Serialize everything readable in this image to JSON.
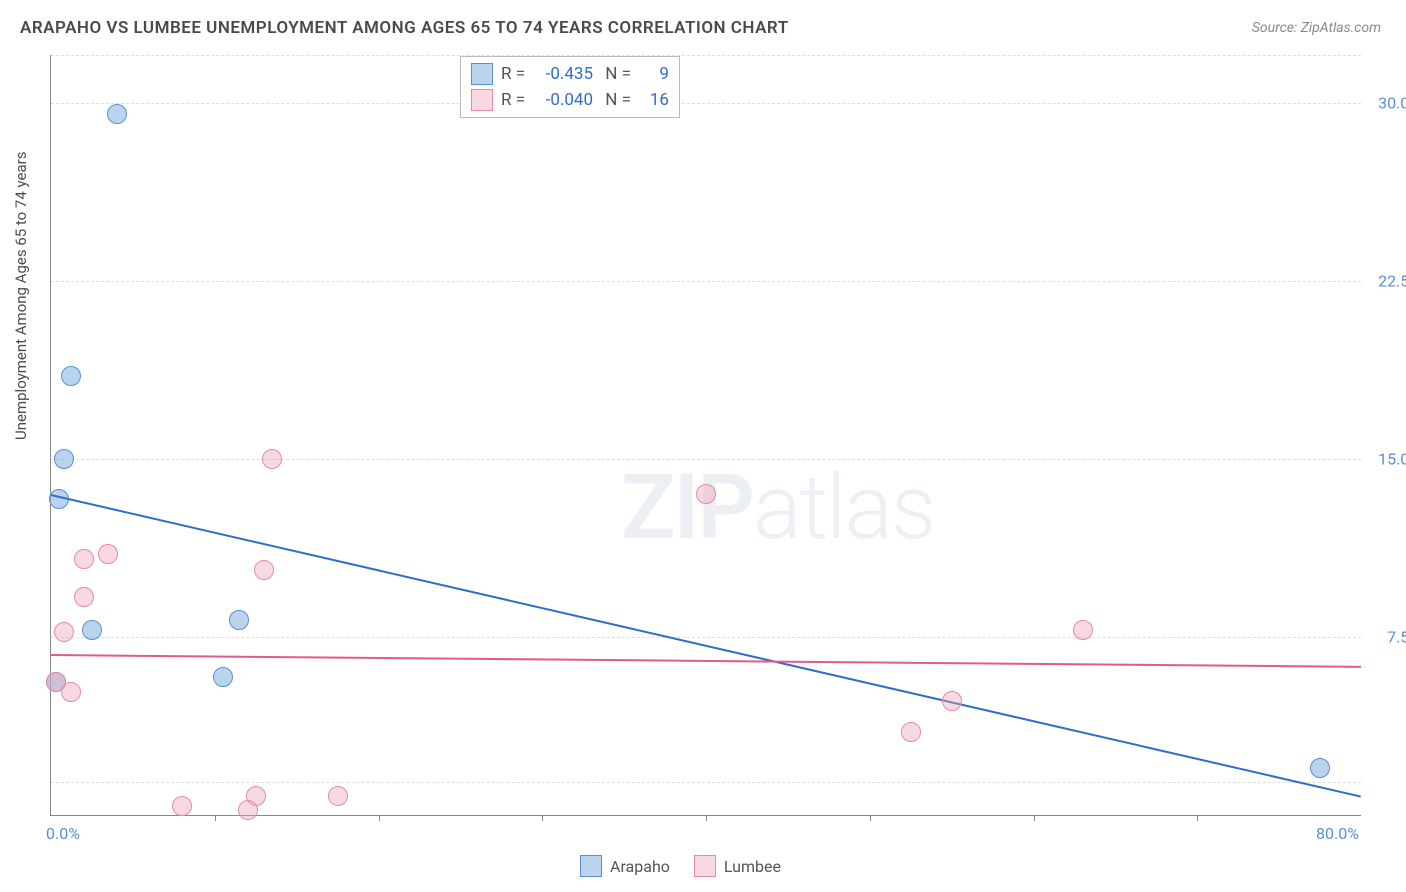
{
  "title": "ARAPAHO VS LUMBEE UNEMPLOYMENT AMONG AGES 65 TO 74 YEARS CORRELATION CHART",
  "source": "Source: ZipAtlas.com",
  "ylabel": "Unemployment Among Ages 65 to 74 years",
  "watermark": {
    "bold": "ZIP",
    "light": "atlas"
  },
  "chart": {
    "type": "scatter",
    "xlim": [
      0,
      80
    ],
    "ylim": [
      0,
      32
    ],
    "xtick_labels": [
      {
        "value": 0,
        "label": "0.0%"
      },
      {
        "value": 80,
        "label": "80.0%"
      }
    ],
    "xtick_marks": [
      10,
      20,
      30,
      40,
      50,
      60,
      70
    ],
    "ytick_labels": [
      {
        "value": 7.5,
        "label": "7.5%"
      },
      {
        "value": 15.0,
        "label": "15.0%"
      },
      {
        "value": 22.5,
        "label": "22.5%"
      },
      {
        "value": 30.0,
        "label": "30.0%"
      }
    ],
    "gridlines": [
      1.4,
      7.5,
      15.0,
      22.5,
      30.0,
      32
    ],
    "background_color": "#ffffff",
    "grid_color": "#dddddd",
    "series": [
      {
        "name": "Arapaho",
        "color_fill": "rgba(120,170,220,0.5)",
        "color_stroke": "#5b8fd4",
        "R": "-0.435",
        "N": "9",
        "points": [
          {
            "x": 4.0,
            "y": 29.5
          },
          {
            "x": 1.2,
            "y": 18.5
          },
          {
            "x": 0.8,
            "y": 15.0
          },
          {
            "x": 0.5,
            "y": 13.3
          },
          {
            "x": 11.5,
            "y": 8.2
          },
          {
            "x": 2.5,
            "y": 7.8
          },
          {
            "x": 10.5,
            "y": 5.8
          },
          {
            "x": 0.3,
            "y": 5.6
          },
          {
            "x": 77.5,
            "y": 2.0
          }
        ],
        "trend": {
          "x1": 0,
          "y1": 13.5,
          "x2": 80,
          "y2": 0.8,
          "color": "#2e6fc9"
        }
      },
      {
        "name": "Lumbee",
        "color_fill": "rgba(240,160,180,0.4)",
        "color_stroke": "#e78aa6",
        "R": "-0.040",
        "N": "16",
        "points": [
          {
            "x": 13.5,
            "y": 15.0
          },
          {
            "x": 40.0,
            "y": 13.5
          },
          {
            "x": 3.5,
            "y": 11.0
          },
          {
            "x": 2.0,
            "y": 10.8
          },
          {
            "x": 13.0,
            "y": 10.3
          },
          {
            "x": 2.0,
            "y": 9.2
          },
          {
            "x": 63.0,
            "y": 7.8
          },
          {
            "x": 0.8,
            "y": 7.7
          },
          {
            "x": 0.3,
            "y": 5.6
          },
          {
            "x": 1.2,
            "y": 5.2
          },
          {
            "x": 55.0,
            "y": 4.8
          },
          {
            "x": 52.5,
            "y": 3.5
          },
          {
            "x": 12.5,
            "y": 0.8
          },
          {
            "x": 17.5,
            "y": 0.8
          },
          {
            "x": 8.0,
            "y": 0.4
          },
          {
            "x": 12.0,
            "y": 0.2
          }
        ],
        "trend": {
          "x1": 0,
          "y1": 6.8,
          "x2": 80,
          "y2": 6.3,
          "color": "#e05a8a"
        }
      }
    ]
  },
  "legend_bottom": [
    {
      "label": "Arapaho",
      "swatch": "blue"
    },
    {
      "label": "Lumbee",
      "swatch": "pink"
    }
  ]
}
